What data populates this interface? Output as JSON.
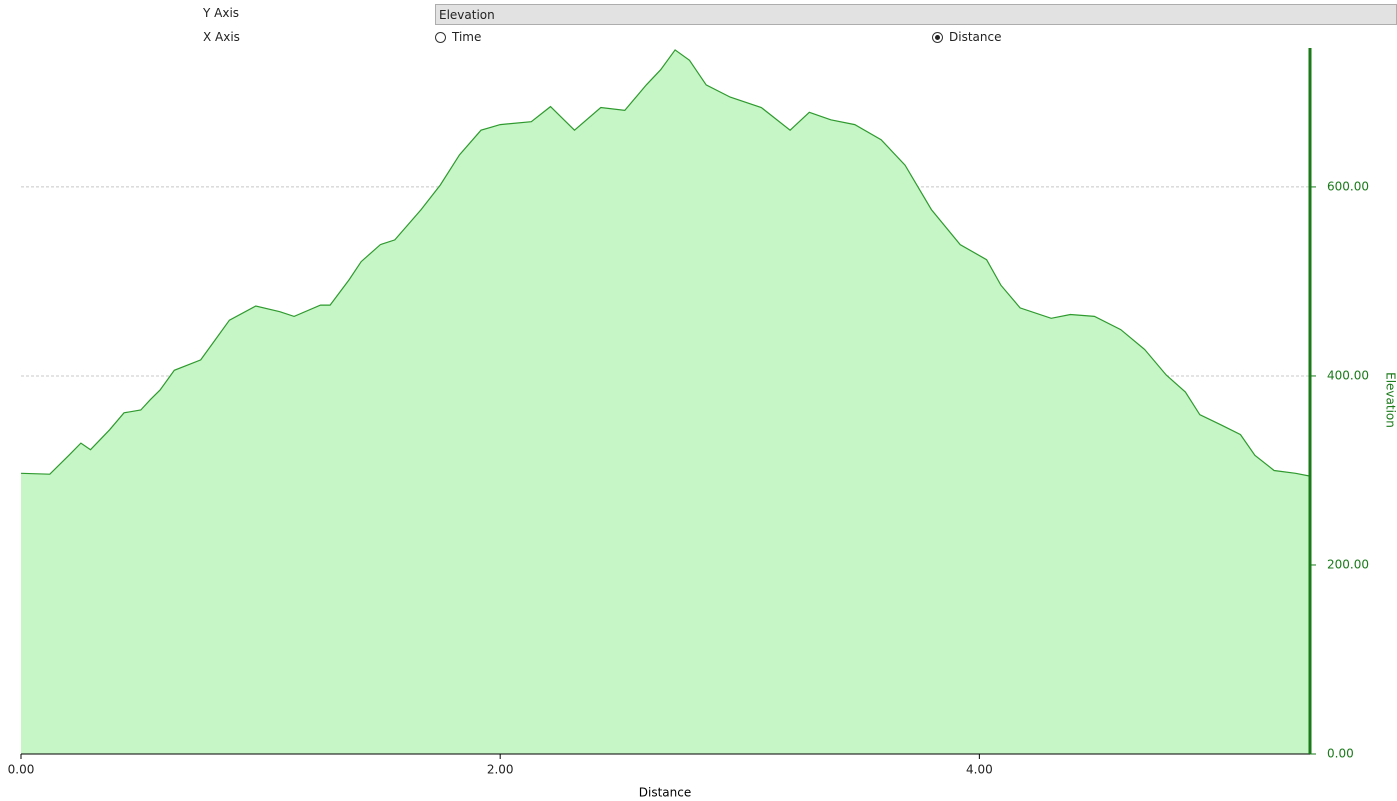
{
  "controls": {
    "y_axis_label": "Y Axis",
    "y_axis_value": "Elevation",
    "x_axis_label": "X Axis",
    "x_axis_options": [
      {
        "label": "Time",
        "checked": false
      },
      {
        "label": "Distance",
        "checked": true
      }
    ]
  },
  "chart_data": {
    "type": "area",
    "x_label": "Distance",
    "y_label": "Elevation",
    "x": [
      0,
      0.12,
      0.2,
      0.25,
      0.29,
      0.37,
      0.43,
      0.5,
      0.54,
      0.58,
      0.64,
      0.75,
      0.81,
      0.87,
      0.98,
      1.08,
      1.14,
      1.25,
      1.29,
      1.37,
      1.42,
      1.5,
      1.56,
      1.67,
      1.75,
      1.83,
      1.92,
      2.0,
      2.13,
      2.21,
      2.31,
      2.42,
      2.52,
      2.61,
      2.67,
      2.73,
      2.79,
      2.86,
      2.96,
      3.09,
      3.21,
      3.29,
      3.38,
      3.48,
      3.59,
      3.69,
      3.8,
      3.92,
      4.03,
      4.09,
      4.17,
      4.3,
      4.38,
      4.48,
      4.59,
      4.69,
      4.78,
      4.86,
      4.92,
      5.01,
      5.09,
      5.15,
      5.23,
      5.32,
      5.38
    ],
    "values": [
      297,
      296,
      316,
      329,
      322,
      343,
      361,
      364,
      375,
      385,
      406,
      417,
      438,
      459,
      474,
      468,
      463,
      475,
      475,
      502,
      521,
      539,
      544,
      576,
      602,
      634,
      660,
      666,
      669,
      685,
      660,
      684,
      681,
      708,
      724,
      745,
      734,
      708,
      695,
      684,
      660,
      679,
      671,
      666,
      650,
      623,
      576,
      539,
      523,
      496,
      472,
      461,
      465,
      463,
      449,
      428,
      401,
      383,
      359,
      348,
      338,
      316,
      300,
      297,
      294
    ],
    "color": "#2e9a2e",
    "fill": "#c6f5c6",
    "axis_color": "#1a7a1a",
    "xlim": [
      0,
      5.38
    ],
    "ylim": [
      0,
      747
    ],
    "xticks": [
      {
        "value": 0,
        "label": "0.00"
      },
      {
        "value": 2,
        "label": "2.00"
      },
      {
        "value": 4,
        "label": "4.00"
      }
    ],
    "yticks": [
      {
        "value": 0,
        "label": "0.00"
      },
      {
        "value": 200,
        "label": "200.00"
      },
      {
        "value": 400,
        "label": "400.00"
      },
      {
        "value": 600,
        "label": "600.00"
      }
    ],
    "grid": true
  }
}
